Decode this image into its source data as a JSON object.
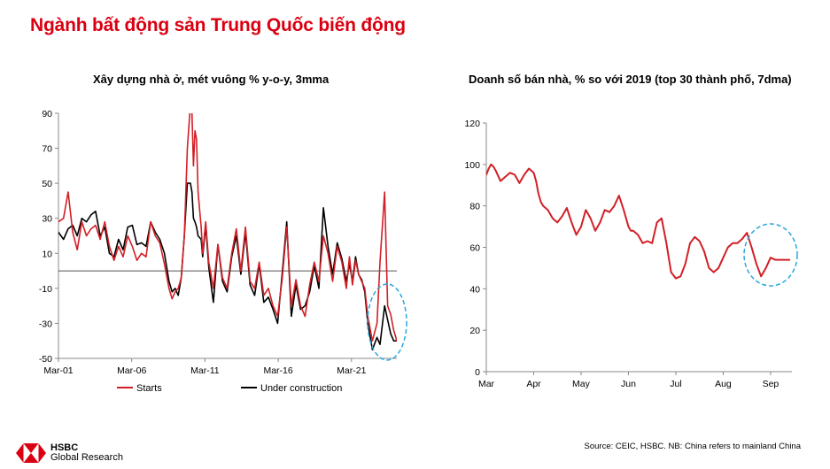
{
  "slide": {
    "title": "Ngành bất động sản Trung Quốc biến động",
    "source": "Source: CEIC, HSBC. NB: China refers to mainland China"
  },
  "logo": {
    "name": "HSBC",
    "sub": "Global Research",
    "icon": "hsbc-hexagon-icon"
  },
  "colors": {
    "accent": "#db0011",
    "series_red": "#d21f26",
    "series_black": "#000000",
    "highlight": "#29a8e0"
  },
  "chart_data": [
    {
      "type": "line",
      "title": "Xây dựng nhà ở, mét vuông % y-o-y, 3mma",
      "xlabel": "",
      "ylabel": "",
      "ylim": [
        -50,
        90
      ],
      "yticks": [
        "90",
        "70",
        "50",
        "30",
        "10",
        "-10",
        "-30",
        "-50"
      ],
      "xticks": [
        "Mar-01",
        "Mar-06",
        "Mar-11",
        "Mar-16",
        "Mar-21"
      ],
      "xlim": [
        2001.17,
        2023.3
      ],
      "legend": "bottom",
      "series": [
        {
          "name": "Starts",
          "color": "#d21f26",
          "x": [
            2001.17,
            2001.5,
            2001.8,
            2002.1,
            2002.4,
            2002.7,
            2003.0,
            2003.3,
            2003.6,
            2003.9,
            2004.2,
            2004.5,
            2004.8,
            2005.1,
            2005.4,
            2005.7,
            2006.0,
            2006.3,
            2006.6,
            2006.9,
            2007.2,
            2007.5,
            2007.8,
            2008.1,
            2008.4,
            2008.6,
            2008.8,
            2009.0,
            2009.2,
            2009.4,
            2009.6,
            2009.8,
            2009.9,
            2010.0,
            2010.1,
            2010.2,
            2010.3,
            2010.5,
            2010.6,
            2010.8,
            2011.0,
            2011.3,
            2011.6,
            2011.9,
            2012.2,
            2012.5,
            2012.8,
            2013.1,
            2013.4,
            2013.7,
            2014.0,
            2014.3,
            2014.6,
            2014.9,
            2015.2,
            2015.5,
            2015.8,
            2016.1,
            2016.4,
            2016.7,
            2017.0,
            2017.3,
            2017.6,
            2017.9,
            2018.2,
            2018.5,
            2018.8,
            2019.1,
            2019.4,
            2019.7,
            2020.0,
            2020.2,
            2020.4,
            2020.6,
            2020.8,
            2021.0,
            2021.2,
            2021.4,
            2021.7,
            2022.0,
            2022.2,
            2022.5,
            2022.7,
            2022.9,
            2023.1,
            2023.3
          ],
          "y": [
            28,
            30,
            45,
            22,
            12,
            28,
            20,
            24,
            26,
            18,
            28,
            14,
            6,
            14,
            8,
            20,
            14,
            6,
            10,
            8,
            28,
            20,
            16,
            4,
            -10,
            -16,
            -12,
            -10,
            -4,
            20,
            70,
            95,
            90,
            60,
            80,
            75,
            45,
            25,
            10,
            28,
            5,
            -10,
            15,
            -4,
            -10,
            10,
            24,
            0,
            25,
            -6,
            -10,
            5,
            -14,
            -10,
            -20,
            -26,
            -5,
            25,
            -20,
            -5,
            -20,
            -26,
            -8,
            5,
            -6,
            20,
            10,
            -6,
            14,
            5,
            -10,
            8,
            -8,
            6,
            -2,
            -6,
            -10,
            -26,
            -40,
            -30,
            5,
            45,
            -20,
            -25,
            -34,
            -40
          ]
        },
        {
          "name": "Under construction",
          "color": "#000000",
          "x": [
            2001.17,
            2001.5,
            2001.8,
            2002.1,
            2002.4,
            2002.7,
            2003.0,
            2003.3,
            2003.6,
            2003.9,
            2004.2,
            2004.5,
            2004.8,
            2005.1,
            2005.4,
            2005.7,
            2006.0,
            2006.3,
            2006.6,
            2006.9,
            2007.2,
            2007.5,
            2007.8,
            2008.1,
            2008.4,
            2008.6,
            2008.8,
            2009.0,
            2009.2,
            2009.4,
            2009.6,
            2009.8,
            2009.9,
            2010.0,
            2010.1,
            2010.2,
            2010.3,
            2010.5,
            2010.6,
            2010.8,
            2011.0,
            2011.3,
            2011.6,
            2011.9,
            2012.2,
            2012.5,
            2012.8,
            2013.1,
            2013.4,
            2013.7,
            2014.0,
            2014.3,
            2014.6,
            2014.9,
            2015.2,
            2015.5,
            2015.8,
            2016.1,
            2016.4,
            2016.7,
            2017.0,
            2017.3,
            2017.6,
            2017.9,
            2018.2,
            2018.5,
            2018.8,
            2019.1,
            2019.4,
            2019.7,
            2020.0,
            2020.2,
            2020.4,
            2020.6,
            2020.8,
            2021.0,
            2021.2,
            2021.4,
            2021.7,
            2022.0,
            2022.2,
            2022.5,
            2022.7,
            2022.9,
            2023.1,
            2023.3
          ],
          "y": [
            22,
            18,
            24,
            26,
            20,
            30,
            28,
            32,
            34,
            20,
            25,
            10,
            8,
            18,
            12,
            25,
            26,
            15,
            16,
            14,
            28,
            22,
            18,
            10,
            -6,
            -12,
            -10,
            -14,
            -4,
            20,
            50,
            50,
            45,
            30,
            28,
            25,
            20,
            18,
            8,
            26,
            2,
            -18,
            15,
            -6,
            -12,
            8,
            20,
            -2,
            22,
            -8,
            -14,
            4,
            -18,
            -15,
            -22,
            -30,
            -2,
            28,
            -26,
            -8,
            -22,
            -20,
            -12,
            3,
            -10,
            36,
            14,
            -2,
            16,
            7,
            -6,
            4,
            -6,
            8,
            -2,
            -5,
            -12,
            -30,
            -45,
            -38,
            -42,
            -20,
            -28,
            -36,
            -40,
            -40
          ]
        }
      ]
    },
    {
      "type": "line",
      "title": "Doanh số bán nhà, % so với 2019 (top 30 thành phố, 7dma)",
      "xlabel": "",
      "ylabel": "",
      "ylim": [
        0,
        120
      ],
      "yticks": [
        "120",
        "100",
        "80",
        "60",
        "40",
        "20",
        "0"
      ],
      "xticks": [
        "Mar",
        "Apr",
        "May",
        "Jun",
        "Jul",
        "Aug",
        "Sep"
      ],
      "xlim": [
        0,
        6.45
      ],
      "legend": "none",
      "series": [
        {
          "name": "",
          "color": "#d21f26",
          "x": [
            0.0,
            0.05,
            0.1,
            0.15,
            0.2,
            0.3,
            0.4,
            0.5,
            0.6,
            0.7,
            0.8,
            0.9,
            1.0,
            1.05,
            1.1,
            1.15,
            1.2,
            1.3,
            1.4,
            1.5,
            1.6,
            1.7,
            1.8,
            1.9,
            2.0,
            2.1,
            2.2,
            2.3,
            2.4,
            2.5,
            2.6,
            2.7,
            2.8,
            2.9,
            3.0,
            3.05,
            3.1,
            3.2,
            3.3,
            3.4,
            3.5,
            3.6,
            3.7,
            3.8,
            3.9,
            4.0,
            4.1,
            4.2,
            4.3,
            4.4,
            4.5,
            4.6,
            4.7,
            4.8,
            4.9,
            5.0,
            5.1,
            5.2,
            5.3,
            5.4,
            5.5,
            5.6,
            5.7,
            5.8,
            5.9,
            6.0,
            6.1,
            6.2,
            6.3,
            6.4
          ],
          "y": [
            95,
            98,
            100,
            99,
            97,
            92,
            94,
            96,
            95,
            91,
            95,
            98,
            96,
            92,
            86,
            82,
            80,
            78,
            74,
            72,
            75,
            79,
            72,
            66,
            70,
            78,
            74,
            68,
            72,
            78,
            77,
            80,
            85,
            78,
            70,
            68,
            68,
            66,
            62,
            63,
            62,
            72,
            74,
            62,
            48,
            45,
            46,
            52,
            62,
            65,
            63,
            58,
            50,
            48,
            50,
            55,
            60,
            62,
            62,
            64,
            67,
            60,
            52,
            46,
            50,
            55,
            54,
            54,
            54,
            54
          ]
        }
      ]
    }
  ]
}
